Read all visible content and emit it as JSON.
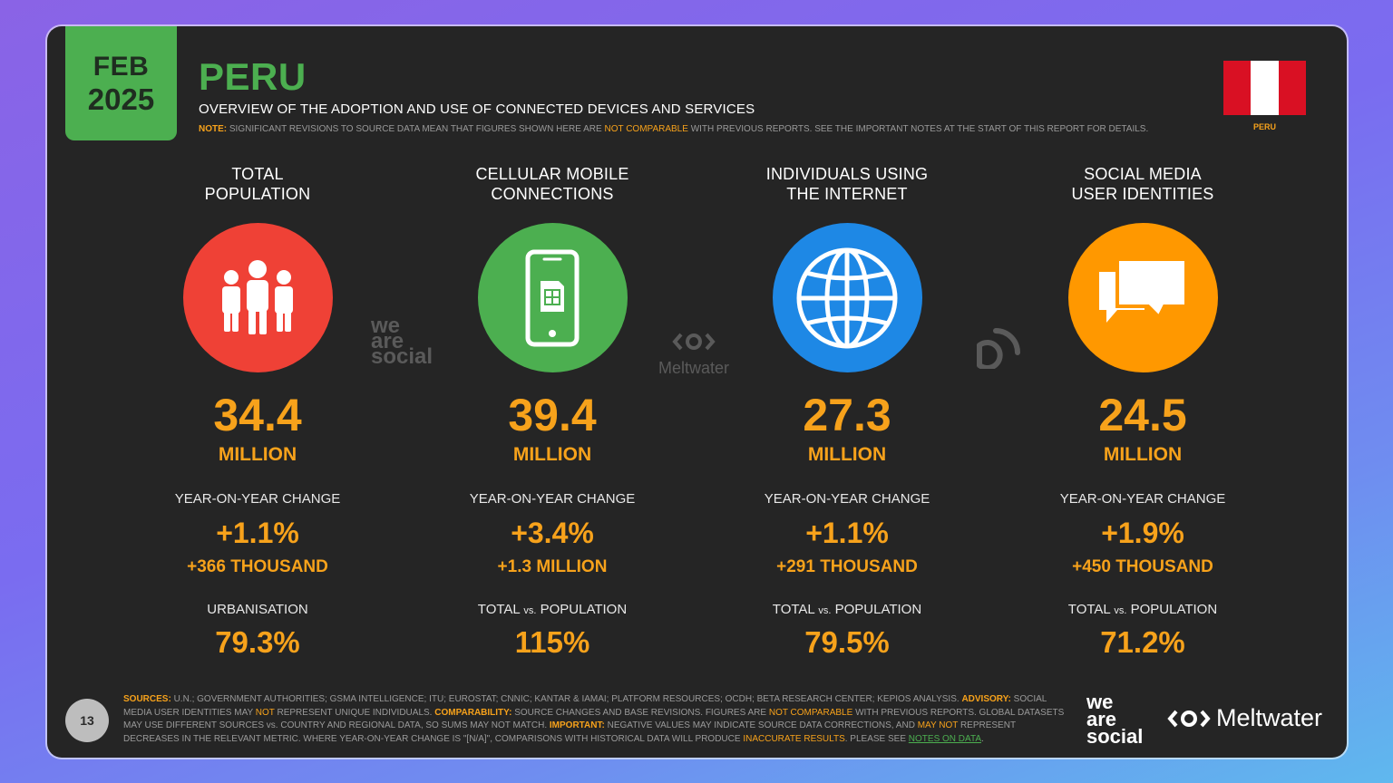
{
  "header": {
    "month": "FEB",
    "year": "2025",
    "country": "PERU",
    "subtitle": "OVERVIEW OF THE ADOPTION AND USE OF CONNECTED DEVICES AND SERVICES",
    "note_label": "NOTE:",
    "note_text_1": "SIGNIFICANT REVISIONS TO SOURCE DATA MEAN THAT FIGURES SHOWN HERE ARE",
    "note_highlight": "NOT COMPARABLE",
    "note_text_2": "WITH PREVIOUS REPORTS. SEE THE IMPORTANT NOTES AT THE START OF THIS REPORT FOR DETAILS.",
    "flag_label": "PERU"
  },
  "colors": {
    "accent_green": "#4caf50",
    "accent_orange": "#f7a21b",
    "red": "#ef4136",
    "green": "#4caf50",
    "blue": "#1e88e5",
    "orange": "#ff9800"
  },
  "stats": [
    {
      "heading_1": "TOTAL",
      "heading_2": "POPULATION",
      "icon": "people-icon",
      "value": "34.4",
      "unit": "MILLION",
      "yoy_label": "YEAR-ON-YEAR CHANGE",
      "yoy_pct": "+1.1%",
      "yoy_abs": "+366 THOUSAND",
      "secondary_label": "URBANISATION",
      "secondary_value": "79.3%"
    },
    {
      "heading_1": "CELLULAR MOBILE",
      "heading_2": "CONNECTIONS",
      "icon": "mobile-phone-icon",
      "value": "39.4",
      "unit": "MILLION",
      "yoy_label": "YEAR-ON-YEAR CHANGE",
      "yoy_pct": "+3.4%",
      "yoy_abs": "+1.3 MILLION",
      "secondary_label_a": "TOTAL",
      "secondary_label_vs": "vs.",
      "secondary_label_b": "POPULATION",
      "secondary_value": "115%"
    },
    {
      "heading_1": "INDIVIDUALS USING",
      "heading_2": "THE INTERNET",
      "icon": "globe-icon",
      "value": "27.3",
      "unit": "MILLION",
      "yoy_label": "YEAR-ON-YEAR CHANGE",
      "yoy_pct": "+1.1%",
      "yoy_abs": "+291 THOUSAND",
      "secondary_label_a": "TOTAL",
      "secondary_label_vs": "vs.",
      "secondary_label_b": "POPULATION",
      "secondary_value": "79.5%"
    },
    {
      "heading_1": "SOCIAL MEDIA",
      "heading_2": "USER IDENTITIES",
      "icon": "speech-bubbles-icon",
      "value": "24.5",
      "unit": "MILLION",
      "yoy_label": "YEAR-ON-YEAR CHANGE",
      "yoy_pct": "+1.9%",
      "yoy_abs": "+450 THOUSAND",
      "secondary_label_a": "TOTAL",
      "secondary_label_vs": "vs.",
      "secondary_label_b": "POPULATION",
      "secondary_value": "71.2%"
    }
  ],
  "watermarks": {
    "was_1": "we",
    "was_2": "are",
    "was_3": "social",
    "meltwater": "Meltwater"
  },
  "footer": {
    "page_number": "13",
    "sources_label": "SOURCES:",
    "sources_text": "U.N.; GOVERNMENT AUTHORITIES; GSMA INTELLIGENCE; ITU; EUROSTAT; CNNIC; KANTAR & IAMAI; PLATFORM RESOURCES; OCDH; BETA RESEARCH CENTER; KEPIOS ANALYSIS.",
    "advisory_label": "ADVISORY:",
    "advisory_text_1": "SOCIAL MEDIA USER IDENTITIES MAY",
    "advisory_not": "NOT",
    "advisory_text_2": "REPRESENT UNIQUE INDIVIDUALS.",
    "comparability_label": "COMPARABILITY:",
    "comparability_text_1": "SOURCE CHANGES AND BASE REVISIONS. FIGURES ARE",
    "comparability_not": "NOT COMPARABLE",
    "comparability_text_2": "WITH PREVIOUS REPORTS. GLOBAL DATASETS MAY USE DIFFERENT SOURCES vs. COUNTRY AND REGIONAL DATA, SO SUMS MAY NOT MATCH.",
    "important_label": "IMPORTANT:",
    "important_text_1": "NEGATIVE VALUES MAY INDICATE SOURCE DATA CORRECTIONS, AND",
    "important_may_not": "MAY NOT",
    "important_text_2": "REPRESENT DECREASES IN THE RELEVANT METRIC. WHERE YEAR-ON-YEAR CHANGE IS \"[N/A]\", COMPARISONS WITH HISTORICAL DATA WILL PRODUCE",
    "inaccurate": "INACCURATE RESULTS",
    "please_see": ". PLEASE SEE",
    "notes_link": "NOTES ON DATA",
    "period": ".",
    "logo_was_1": "we",
    "logo_was_2": "are",
    "logo_was_3": "social",
    "logo_meltwater": "Meltwater"
  }
}
